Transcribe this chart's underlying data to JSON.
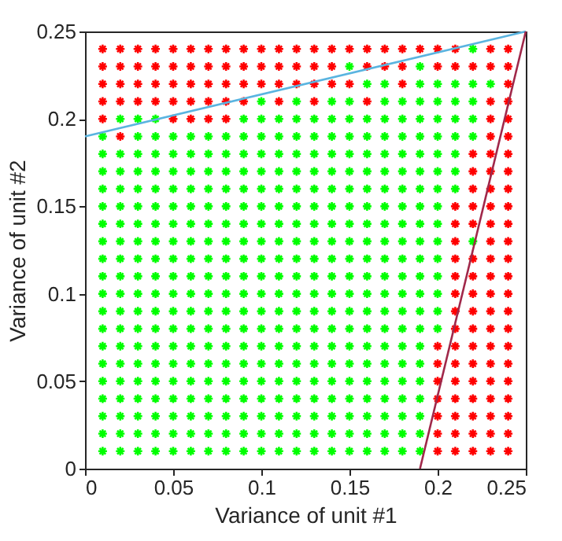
{
  "chart_data": {
    "type": "scatter",
    "xlabel": "Variance of unit #1",
    "ylabel": "Variance of unit #2",
    "xlim": [
      0,
      0.25
    ],
    "ylim": [
      0,
      0.25
    ],
    "xticks": [
      0,
      0.05,
      0.1,
      0.15,
      0.2,
      0.25
    ],
    "yticks": [
      0,
      0.05,
      0.1,
      0.15,
      0.2,
      0.25
    ],
    "grid": false,
    "series": [
      {
        "marker": "cross",
        "color": "#ff0000",
        "x": [
          0.01,
          0.02,
          0.03,
          0.04,
          0.05,
          0.06,
          0.07,
          0.08,
          0.09,
          0.1,
          0.11,
          0.12,
          0.13,
          0.14,
          0.15,
          0.16,
          0.17,
          0.18,
          0.19,
          0.2,
          0.21,
          0.23,
          0.24,
          0.01,
          0.02,
          0.03,
          0.04,
          0.05,
          0.06,
          0.07,
          0.08,
          0.09,
          0.1,
          0.11,
          0.12,
          0.13,
          0.14,
          0.16,
          0.17,
          0.18,
          0.2,
          0.21,
          0.22,
          0.23,
          0.24,
          0.01,
          0.02,
          0.03,
          0.04,
          0.05,
          0.06,
          0.07,
          0.08,
          0.09,
          0.1,
          0.11,
          0.12,
          0.13,
          0.14,
          0.15,
          0.18,
          0.24,
          0.01,
          0.02,
          0.03,
          0.04,
          0.05,
          0.06,
          0.07,
          0.08,
          0.09,
          0.11,
          0.13,
          0.16,
          0.23,
          0.24,
          0.01,
          0.05,
          0.06,
          0.07,
          0.08,
          0.23,
          0.24,
          0.02,
          0.23,
          0.24,
          0.22,
          0.23,
          0.24,
          0.22,
          0.23,
          0.24,
          0.22,
          0.23,
          0.24,
          0.21,
          0.22,
          0.23,
          0.24,
          0.21,
          0.22,
          0.23,
          0.24,
          0.21,
          0.23,
          0.24,
          0.21,
          0.22,
          0.23,
          0.24,
          0.21,
          0.22,
          0.23,
          0.24,
          0.21,
          0.22,
          0.23,
          0.24,
          0.21,
          0.22,
          0.23,
          0.24,
          0.21,
          0.22,
          0.23,
          0.24,
          0.2,
          0.21,
          0.22,
          0.23,
          0.24,
          0.2,
          0.21,
          0.22,
          0.23,
          0.24,
          0.2,
          0.21,
          0.22,
          0.23,
          0.24,
          0.2,
          0.21,
          0.22,
          0.23,
          0.24,
          0.2,
          0.21,
          0.22,
          0.23,
          0.24,
          0.2,
          0.21,
          0.22,
          0.23,
          0.24,
          0.2,
          0.21,
          0.22,
          0.23,
          0.24
        ],
        "values": [
          0.24,
          0.24,
          0.24,
          0.24,
          0.24,
          0.24,
          0.24,
          0.24,
          0.24,
          0.24,
          0.24,
          0.24,
          0.24,
          0.24,
          0.24,
          0.24,
          0.24,
          0.24,
          0.24,
          0.24,
          0.24,
          0.24,
          0.24,
          0.23,
          0.23,
          0.23,
          0.23,
          0.23,
          0.23,
          0.23,
          0.23,
          0.23,
          0.23,
          0.23,
          0.23,
          0.23,
          0.23,
          0.23,
          0.23,
          0.23,
          0.23,
          0.23,
          0.23,
          0.23,
          0.23,
          0.22,
          0.22,
          0.22,
          0.22,
          0.22,
          0.22,
          0.22,
          0.22,
          0.22,
          0.22,
          0.22,
          0.22,
          0.22,
          0.22,
          0.22,
          0.22,
          0.22,
          0.21,
          0.21,
          0.21,
          0.21,
          0.21,
          0.21,
          0.21,
          0.21,
          0.21,
          0.21,
          0.21,
          0.21,
          0.21,
          0.21,
          0.2,
          0.2,
          0.2,
          0.2,
          0.2,
          0.2,
          0.2,
          0.19,
          0.19,
          0.19,
          0.18,
          0.18,
          0.18,
          0.17,
          0.17,
          0.17,
          0.16,
          0.16,
          0.16,
          0.15,
          0.15,
          0.15,
          0.15,
          0.14,
          0.14,
          0.14,
          0.14,
          0.13,
          0.13,
          0.13,
          0.12,
          0.12,
          0.12,
          0.12,
          0.11,
          0.11,
          0.11,
          0.11,
          0.1,
          0.1,
          0.1,
          0.1,
          0.09,
          0.09,
          0.09,
          0.09,
          0.08,
          0.08,
          0.08,
          0.08,
          0.07,
          0.07,
          0.07,
          0.07,
          0.07,
          0.06,
          0.06,
          0.06,
          0.06,
          0.06,
          0.05,
          0.05,
          0.05,
          0.05,
          0.05,
          0.04,
          0.04,
          0.04,
          0.04,
          0.04,
          0.03,
          0.03,
          0.03,
          0.03,
          0.03,
          0.02,
          0.02,
          0.02,
          0.02,
          0.02,
          0.01,
          0.01,
          0.01,
          0.01,
          0.01
        ]
      },
      {
        "marker": "cross",
        "color": "#00ff00",
        "x": [
          0.22,
          0.15,
          0.19,
          0.16,
          0.17,
          0.19,
          0.2,
          0.21,
          0.22,
          0.23,
          0.1,
          0.12,
          0.14,
          0.15,
          0.17,
          0.18,
          0.19,
          0.2,
          0.21,
          0.22,
          0.02,
          0.03,
          0.04,
          0.09,
          0.1,
          0.11,
          0.12,
          0.13,
          0.14,
          0.15,
          0.16,
          0.17,
          0.18,
          0.19,
          0.2,
          0.21,
          0.22,
          0.01,
          0.03,
          0.04,
          0.05,
          0.06,
          0.07,
          0.08,
          0.09,
          0.1,
          0.11,
          0.12,
          0.13,
          0.14,
          0.15,
          0.16,
          0.17,
          0.18,
          0.19,
          0.2,
          0.21,
          0.22,
          0.01,
          0.02,
          0.03,
          0.04,
          0.05,
          0.06,
          0.07,
          0.08,
          0.09,
          0.1,
          0.11,
          0.12,
          0.13,
          0.14,
          0.15,
          0.16,
          0.17,
          0.18,
          0.19,
          0.2,
          0.21,
          0.01,
          0.02,
          0.03,
          0.04,
          0.05,
          0.06,
          0.07,
          0.08,
          0.09,
          0.1,
          0.11,
          0.12,
          0.13,
          0.14,
          0.15,
          0.16,
          0.17,
          0.18,
          0.19,
          0.2,
          0.21,
          0.01,
          0.02,
          0.03,
          0.04,
          0.05,
          0.06,
          0.07,
          0.08,
          0.09,
          0.1,
          0.11,
          0.12,
          0.13,
          0.14,
          0.15,
          0.16,
          0.17,
          0.18,
          0.19,
          0.2,
          0.21,
          0.01,
          0.02,
          0.03,
          0.04,
          0.05,
          0.06,
          0.07,
          0.08,
          0.09,
          0.1,
          0.11,
          0.12,
          0.13,
          0.14,
          0.15,
          0.16,
          0.17,
          0.18,
          0.19,
          0.2,
          0.01,
          0.02,
          0.03,
          0.04,
          0.05,
          0.06,
          0.07,
          0.08,
          0.09,
          0.1,
          0.11,
          0.12,
          0.13,
          0.14,
          0.15,
          0.16,
          0.17,
          0.18,
          0.19,
          0.2,
          0.01,
          0.02,
          0.03,
          0.04,
          0.05,
          0.06,
          0.07,
          0.08,
          0.09,
          0.1,
          0.11,
          0.12,
          0.13,
          0.14,
          0.15,
          0.16,
          0.17,
          0.18,
          0.19,
          0.2,
          0.22,
          0.01,
          0.02,
          0.03,
          0.04,
          0.05,
          0.06,
          0.07,
          0.08,
          0.09,
          0.1,
          0.11,
          0.12,
          0.13,
          0.14,
          0.15,
          0.16,
          0.17,
          0.18,
          0.19,
          0.2,
          0.01,
          0.02,
          0.03,
          0.04,
          0.05,
          0.06,
          0.07,
          0.08,
          0.09,
          0.1,
          0.11,
          0.12,
          0.13,
          0.14,
          0.15,
          0.16,
          0.17,
          0.18,
          0.19,
          0.2,
          0.01,
          0.02,
          0.03,
          0.04,
          0.05,
          0.06,
          0.07,
          0.08,
          0.09,
          0.1,
          0.11,
          0.12,
          0.13,
          0.14,
          0.15,
          0.16,
          0.17,
          0.18,
          0.19,
          0.2,
          0.01,
          0.02,
          0.03,
          0.04,
          0.05,
          0.06,
          0.07,
          0.08,
          0.09,
          0.1,
          0.11,
          0.12,
          0.13,
          0.14,
          0.15,
          0.16,
          0.17,
          0.18,
          0.19,
          0.2,
          0.01,
          0.02,
          0.03,
          0.04,
          0.05,
          0.06,
          0.07,
          0.08,
          0.09,
          0.1,
          0.11,
          0.12,
          0.13,
          0.14,
          0.15,
          0.16,
          0.17,
          0.18,
          0.19,
          0.2,
          0.01,
          0.02,
          0.03,
          0.04,
          0.05,
          0.06,
          0.07,
          0.08,
          0.09,
          0.1,
          0.11,
          0.12,
          0.13,
          0.14,
          0.15,
          0.16,
          0.17,
          0.18,
          0.19,
          0.01,
          0.02,
          0.03,
          0.04,
          0.05,
          0.06,
          0.07,
          0.08,
          0.09,
          0.1,
          0.11,
          0.12,
          0.13,
          0.14,
          0.15,
          0.16,
          0.17,
          0.18,
          0.19,
          0.01,
          0.02,
          0.03,
          0.04,
          0.05,
          0.06,
          0.07,
          0.08,
          0.09,
          0.1,
          0.11,
          0.12,
          0.13,
          0.14,
          0.15,
          0.16,
          0.17,
          0.18,
          0.19,
          0.01,
          0.02,
          0.03,
          0.04,
          0.05,
          0.06,
          0.07,
          0.08,
          0.09,
          0.1,
          0.11,
          0.12,
          0.13,
          0.14,
          0.15,
          0.16,
          0.17,
          0.18,
          0.19,
          0.01,
          0.02,
          0.03,
          0.04,
          0.05,
          0.06,
          0.07,
          0.08,
          0.09,
          0.1,
          0.11,
          0.12,
          0.13,
          0.14,
          0.15,
          0.16,
          0.17,
          0.18,
          0.19,
          0.01,
          0.02,
          0.03,
          0.04,
          0.05,
          0.06,
          0.07,
          0.08,
          0.09,
          0.1,
          0.11,
          0.12,
          0.13,
          0.14,
          0.15,
          0.16,
          0.17,
          0.18,
          0.19,
          0.01,
          0.02,
          0.03,
          0.04,
          0.05,
          0.06,
          0.07,
          0.08,
          0.09,
          0.1,
          0.11,
          0.12,
          0.13,
          0.14,
          0.15,
          0.16,
          0.17,
          0.18,
          0.19
        ],
        "values": [
          0.24,
          0.23,
          0.23,
          0.22,
          0.22,
          0.22,
          0.22,
          0.22,
          0.22,
          0.22,
          0.21,
          0.21,
          0.21,
          0.21,
          0.21,
          0.21,
          0.21,
          0.21,
          0.21,
          0.21,
          0.2,
          0.2,
          0.2,
          0.2,
          0.2,
          0.2,
          0.2,
          0.2,
          0.2,
          0.2,
          0.2,
          0.2,
          0.2,
          0.2,
          0.2,
          0.2,
          0.2,
          0.19,
          0.19,
          0.19,
          0.19,
          0.19,
          0.19,
          0.19,
          0.19,
          0.19,
          0.19,
          0.19,
          0.19,
          0.19,
          0.19,
          0.19,
          0.19,
          0.19,
          0.19,
          0.19,
          0.19,
          0.19,
          0.18,
          0.18,
          0.18,
          0.18,
          0.18,
          0.18,
          0.18,
          0.18,
          0.18,
          0.18,
          0.18,
          0.18,
          0.18,
          0.18,
          0.18,
          0.18,
          0.18,
          0.18,
          0.18,
          0.18,
          0.18,
          0.17,
          0.17,
          0.17,
          0.17,
          0.17,
          0.17,
          0.17,
          0.17,
          0.17,
          0.17,
          0.17,
          0.17,
          0.17,
          0.17,
          0.17,
          0.17,
          0.17,
          0.17,
          0.17,
          0.17,
          0.17,
          0.16,
          0.16,
          0.16,
          0.16,
          0.16,
          0.16,
          0.16,
          0.16,
          0.16,
          0.16,
          0.16,
          0.16,
          0.16,
          0.16,
          0.16,
          0.16,
          0.16,
          0.16,
          0.16,
          0.16,
          0.16,
          0.15,
          0.15,
          0.15,
          0.15,
          0.15,
          0.15,
          0.15,
          0.15,
          0.15,
          0.15,
          0.15,
          0.15,
          0.15,
          0.15,
          0.15,
          0.15,
          0.15,
          0.15,
          0.15,
          0.15,
          0.14,
          0.14,
          0.14,
          0.14,
          0.14,
          0.14,
          0.14,
          0.14,
          0.14,
          0.14,
          0.14,
          0.14,
          0.14,
          0.14,
          0.14,
          0.14,
          0.14,
          0.14,
          0.14,
          0.14,
          0.13,
          0.13,
          0.13,
          0.13,
          0.13,
          0.13,
          0.13,
          0.13,
          0.13,
          0.13,
          0.13,
          0.13,
          0.13,
          0.13,
          0.13,
          0.13,
          0.13,
          0.13,
          0.13,
          0.13,
          0.13,
          0.12,
          0.12,
          0.12,
          0.12,
          0.12,
          0.12,
          0.12,
          0.12,
          0.12,
          0.12,
          0.12,
          0.12,
          0.12,
          0.12,
          0.12,
          0.12,
          0.12,
          0.12,
          0.12,
          0.12,
          0.11,
          0.11,
          0.11,
          0.11,
          0.11,
          0.11,
          0.11,
          0.11,
          0.11,
          0.11,
          0.11,
          0.11,
          0.11,
          0.11,
          0.11,
          0.11,
          0.11,
          0.11,
          0.11,
          0.11,
          0.1,
          0.1,
          0.1,
          0.1,
          0.1,
          0.1,
          0.1,
          0.1,
          0.1,
          0.1,
          0.1,
          0.1,
          0.1,
          0.1,
          0.1,
          0.1,
          0.1,
          0.1,
          0.1,
          0.1,
          0.09,
          0.09,
          0.09,
          0.09,
          0.09,
          0.09,
          0.09,
          0.09,
          0.09,
          0.09,
          0.09,
          0.09,
          0.09,
          0.09,
          0.09,
          0.09,
          0.09,
          0.09,
          0.09,
          0.09,
          0.08,
          0.08,
          0.08,
          0.08,
          0.08,
          0.08,
          0.08,
          0.08,
          0.08,
          0.08,
          0.08,
          0.08,
          0.08,
          0.08,
          0.08,
          0.08,
          0.08,
          0.08,
          0.08,
          0.08,
          0.07,
          0.07,
          0.07,
          0.07,
          0.07,
          0.07,
          0.07,
          0.07,
          0.07,
          0.07,
          0.07,
          0.07,
          0.07,
          0.07,
          0.07,
          0.07,
          0.07,
          0.07,
          0.07,
          0.06,
          0.06,
          0.06,
          0.06,
          0.06,
          0.06,
          0.06,
          0.06,
          0.06,
          0.06,
          0.06,
          0.06,
          0.06,
          0.06,
          0.06,
          0.06,
          0.06,
          0.06,
          0.06,
          0.05,
          0.05,
          0.05,
          0.05,
          0.05,
          0.05,
          0.05,
          0.05,
          0.05,
          0.05,
          0.05,
          0.05,
          0.05,
          0.05,
          0.05,
          0.05,
          0.05,
          0.05,
          0.05,
          0.04,
          0.04,
          0.04,
          0.04,
          0.04,
          0.04,
          0.04,
          0.04,
          0.04,
          0.04,
          0.04,
          0.04,
          0.04,
          0.04,
          0.04,
          0.04,
          0.04,
          0.04,
          0.04,
          0.03,
          0.03,
          0.03,
          0.03,
          0.03,
          0.03,
          0.03,
          0.03,
          0.03,
          0.03,
          0.03,
          0.03,
          0.03,
          0.03,
          0.03,
          0.03,
          0.03,
          0.03,
          0.03,
          0.02,
          0.02,
          0.02,
          0.02,
          0.02,
          0.02,
          0.02,
          0.02,
          0.02,
          0.02,
          0.02,
          0.02,
          0.02,
          0.02,
          0.02,
          0.02,
          0.02,
          0.02,
          0.02,
          0.01,
          0.01,
          0.01,
          0.01,
          0.01,
          0.01,
          0.01,
          0.01,
          0.01,
          0.01,
          0.01,
          0.01,
          0.01,
          0.01,
          0.01,
          0.01,
          0.01,
          0.01,
          0.01
        ]
      },
      {
        "type": "line",
        "color": "#5ab4e0",
        "x": [
          0,
          0.25
        ],
        "values": [
          0.19,
          0.25
        ]
      },
      {
        "type": "line",
        "color": "#a0284a",
        "x": [
          0.19,
          0.25
        ],
        "values": [
          0,
          0.25
        ]
      }
    ]
  }
}
